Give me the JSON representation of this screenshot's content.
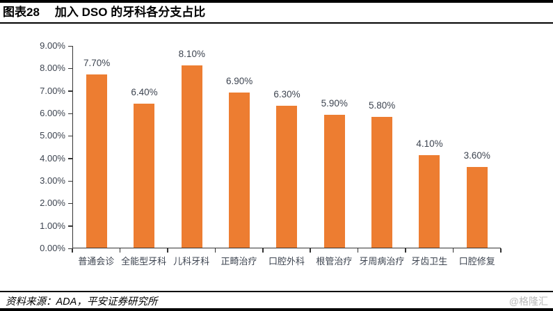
{
  "header": {
    "figure_label": "图表28",
    "title": "加入 DSO 的牙科各分支占比"
  },
  "chart_data": {
    "type": "bar",
    "title": "加入 DSO 的牙科各分支占比",
    "categories": [
      "普通会诊",
      "全能型牙科",
      "儿科牙科",
      "正畸治疗",
      "口腔外科",
      "根管治疗",
      "牙周病治疗",
      "牙齿卫生",
      "口腔修复"
    ],
    "values": [
      7.7,
      6.4,
      8.1,
      6.9,
      6.3,
      5.9,
      5.8,
      4.1,
      3.6
    ],
    "data_labels": [
      "7.70%",
      "6.40%",
      "8.10%",
      "6.90%",
      "6.30%",
      "5.90%",
      "5.80%",
      "4.10%",
      "3.60%"
    ],
    "y_tick_labels": [
      "9.00%",
      "8.00%",
      "7.00%",
      "6.00%",
      "5.00%",
      "4.00%",
      "3.00%",
      "2.00%",
      "1.00%",
      "0.00%"
    ],
    "ylim": [
      0,
      9
    ],
    "xlabel": "",
    "ylabel": "",
    "grid": false,
    "legend": false,
    "bar_color": "#ED7D31",
    "axis_color": "#333333",
    "label_color": "#3d4450"
  },
  "footer": {
    "source": "资料来源：ADA，平安证券研究所",
    "watermark": "@格隆汇"
  }
}
